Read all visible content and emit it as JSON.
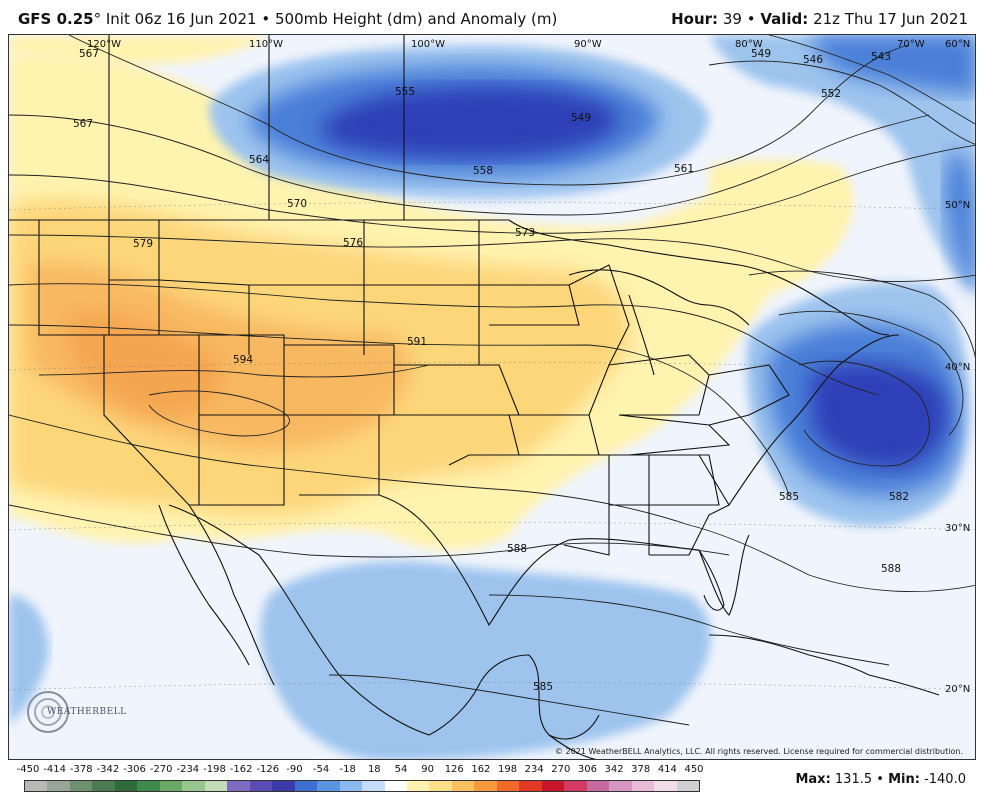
{
  "header": {
    "model": "GFS 0.25",
    "degree": "°",
    "init": "Init 06z 16 Jun 2021",
    "bullet": "•",
    "field": "500mb Height (dm) and Anomaly (m)",
    "hour_label": "Hour:",
    "hour_value": "39",
    "valid_label": "Valid:",
    "valid_value": "21z Thu 17 Jun 2021"
  },
  "map": {
    "longitudes": [
      "120°W",
      "110°W",
      "100°W",
      "90°W",
      "80°W",
      "70°W",
      "60°N"
    ],
    "latitudes": [
      "50°N",
      "40°N",
      "30°N",
      "20°N"
    ],
    "contour_labels": [
      "567",
      "567",
      "555",
      "549",
      "558",
      "561",
      "564",
      "570",
      "573",
      "576",
      "579",
      "549",
      "546",
      "543",
      "552",
      "591",
      "594",
      "585",
      "582",
      "588",
      "588",
      "585"
    ],
    "colors": {
      "anomaly_strong_negative": "#2f3fb8",
      "anomaly_negative": "#4a7fd8",
      "anomaly_weak_negative": "#9ec4ee",
      "anomaly_slight_negative": "#e8eefa",
      "anomaly_slight_positive": "#fff6b8",
      "anomaly_positive": "#fdd67a",
      "anomaly_strong_positive": "#f5a64e"
    }
  },
  "copyright": "© 2021 WeatherBELL Analytics, LLC. All rights reserved. License required for commercial distribution.",
  "logo": {
    "text": "WEATHERBELL",
    "icon": "swirl-logo-icon"
  },
  "colorbar": {
    "ticks": [
      "-450",
      "-414",
      "-378",
      "-342",
      "-306",
      "-270",
      "-234",
      "-198",
      "-162",
      "-126",
      "-90",
      "-54",
      "-18",
      "18",
      "54",
      "90",
      "126",
      "162",
      "198",
      "234",
      "270",
      "306",
      "342",
      "378",
      "414",
      "450"
    ],
    "colors": [
      "#b8b8b8",
      "#9aa59a",
      "#6e8f70",
      "#4c7a52",
      "#2f6a3a",
      "#3f8a4a",
      "#6aa866",
      "#98c48e",
      "#c2dcb6",
      "#7d6cc0",
      "#5a4cb2",
      "#3a3aa8",
      "#3f6fd0",
      "#5a95e0",
      "#8cbaf0",
      "#c4dcf8",
      "#ffffff",
      "#fff3b0",
      "#fde08a",
      "#fbc060",
      "#f79a3e",
      "#f06a2a",
      "#e03a24",
      "#c8162a",
      "#d23c64",
      "#c86aa0",
      "#d696c4",
      "#e8bcd8",
      "#f2dce8",
      "#cfcfcf"
    ]
  },
  "stats": {
    "max_label": "Max:",
    "max_value": "131.5",
    "min_label": "Min:",
    "min_value": "-140.0",
    "bullet": "•"
  }
}
